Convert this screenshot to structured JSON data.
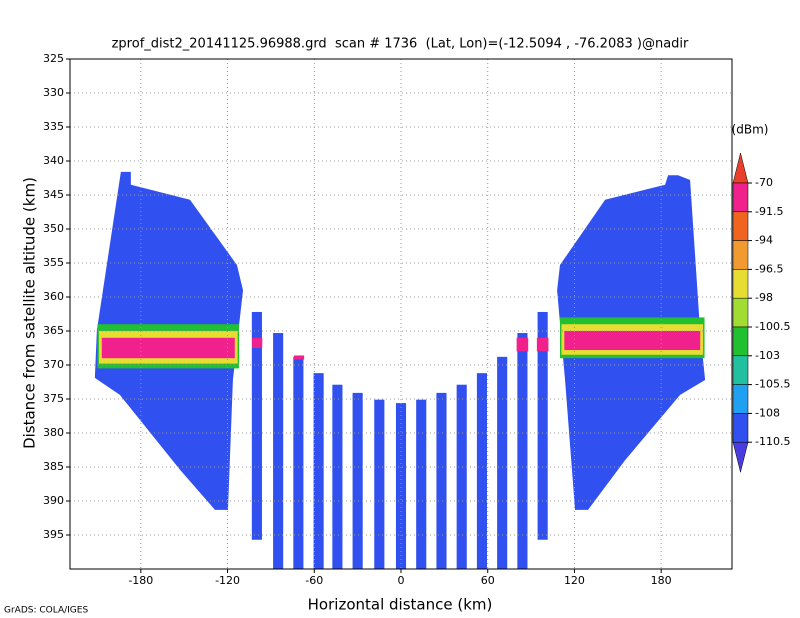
{
  "chart_data": {
    "type": "heatmap",
    "title": "zprof_dist2_20141125.96988.grd  scan # 1736  (Lat, Lon)=(-12.5094 , -76.2083 )@nadir",
    "x_label": "Horizontal distance (km)",
    "y_label": "Distance from satellite altitude (km)",
    "credit": "GrADS: COLA/IGES",
    "xlim": [
      -229,
      229
    ],
    "ylim": [
      400,
      325
    ],
    "y_inverted": true,
    "grid": true,
    "xticks": [
      -180,
      -120,
      -60,
      0,
      60,
      120,
      180
    ],
    "yticks": [
      325,
      330,
      335,
      340,
      345,
      350,
      355,
      360,
      365,
      370,
      375,
      380,
      385,
      390,
      395
    ],
    "colorbar": {
      "unit": "(dBm)",
      "levels": [
        -70,
        -91.5,
        -94,
        -96.5,
        -98,
        -100.5,
        -103,
        -105.5,
        -108,
        -110.5
      ],
      "colors": [
        "#e8402a",
        "#f0208c",
        "#f06420",
        "#f09a30",
        "#e6dc32",
        "#a0dc32",
        "#20c030",
        "#20c0a0",
        "#20a0f0",
        "#3050f0",
        "#4a3ce0"
      ]
    },
    "regions": [
      {
        "value": -109,
        "x": [
          -193.8,
          -186.9,
          -186.9,
          -146.0,
          -113.5,
          -109.3,
          -116.3,
          -119.7,
          -128.7,
          -152.9,
          -194.5,
          -211.8,
          -210.4
        ],
        "y": [
          341.6,
          341.6,
          343.5,
          345.7,
          355.3,
          359.0,
          372.2,
          391.3,
          391.3,
          385.4,
          374.4,
          371.9,
          364.9
        ]
      },
      {
        "value": -109,
        "x": [
          184.8,
          191.7,
          200.0,
          206.9,
          210.4,
          193.1,
          155.0,
          129.4,
          120.4,
          113.5,
          108.0,
          110.0,
          141.2,
          182.7
        ],
        "y": [
          342.1,
          342.1,
          342.8,
          364.9,
          372.2,
          374.4,
          384.0,
          391.3,
          391.3,
          372.2,
          359.0,
          355.3,
          345.7,
          343.5
        ]
      }
    ],
    "columns": {
      "x": [
        -99.7,
        -85,
        -71,
        -57,
        -44,
        -30,
        -15,
        0,
        14,
        28,
        42,
        56,
        70,
        84,
        98
      ],
      "top": [
        362.2,
        365.3,
        368.8,
        371.2,
        372.9,
        374.1,
        375.1,
        375.6,
        375.1,
        374.1,
        372.9,
        371.2,
        368.8,
        365.3,
        362.2
      ],
      "bottom": [
        395.7,
        400,
        400,
        400,
        400,
        400,
        400,
        400,
        400,
        400,
        400,
        400,
        400,
        400,
        395.7
      ],
      "value": [
        -109,
        -109,
        -109,
        -109,
        -109,
        -109,
        -109,
        -109,
        -109,
        -109,
        -109,
        -109,
        -109,
        -109,
        -109
      ]
    },
    "patches": [
      {
        "value": -102,
        "x": [
          -210,
          -112
        ],
        "y": [
          364,
          370.5
        ]
      },
      {
        "value": -97,
        "x": [
          -209,
          -113
        ],
        "y": [
          365,
          369.8
        ]
      },
      {
        "value": -80,
        "x": [
          -207,
          -115
        ],
        "y": [
          366,
          369
        ]
      },
      {
        "value": -102,
        "x": [
          110,
          210
        ],
        "y": [
          363,
          369
        ]
      },
      {
        "value": -97,
        "x": [
          111,
          209
        ],
        "y": [
          364,
          368.5
        ]
      },
      {
        "value": -80,
        "x": [
          113,
          207
        ],
        "y": [
          365,
          367.8
        ]
      },
      {
        "value": -80,
        "x": [
          -103,
          -96
        ],
        "y": [
          366,
          367.5
        ]
      },
      {
        "value": -80,
        "x": [
          -74,
          -67
        ],
        "y": [
          368.6,
          369.2
        ]
      },
      {
        "value": -80,
        "x": [
          80,
          88
        ],
        "y": [
          366,
          368
        ]
      },
      {
        "value": -80,
        "x": [
          94,
          102
        ],
        "y": [
          366,
          368
        ]
      }
    ]
  }
}
